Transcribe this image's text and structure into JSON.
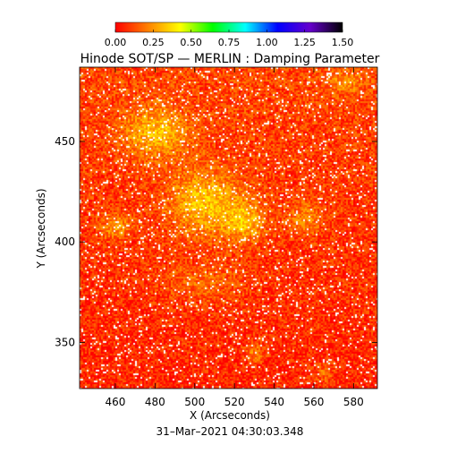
{
  "chart_data": {
    "type": "heatmap",
    "title": "Hinode SOT/SP — MERLIN : Damping Parameter",
    "xlabel": "X (Arcseconds)",
    "ylabel": "Y (Arcseconds)",
    "timestamp": "31–Mar–2021 04:30:03.348",
    "xlim": [
      442,
      592
    ],
    "ylim": [
      327,
      487
    ],
    "xticks": [
      460,
      480,
      500,
      520,
      540,
      560,
      580
    ],
    "yticks": [
      350,
      400,
      450
    ],
    "colorbar": {
      "range": [
        0.0,
        1.5
      ],
      "ticks": [
        "0.00",
        "0.25",
        "0.50",
        "0.75",
        "1.00",
        "1.25",
        "1.50"
      ],
      "colors": [
        "#ff0000",
        "#ff8000",
        "#ffff00",
        "#00ff00",
        "#00ffff",
        "#0000ff",
        "#6600cc",
        "#000000"
      ]
    },
    "background_value": 0.08,
    "regions": [
      {
        "x": 505,
        "y": 420,
        "rx": 18,
        "ry": 16,
        "value": 0.32
      },
      {
        "x": 480,
        "y": 455,
        "rx": 16,
        "ry": 12,
        "value": 0.3
      },
      {
        "x": 525,
        "y": 410,
        "rx": 10,
        "ry": 10,
        "value": 0.28
      },
      {
        "x": 460,
        "y": 408,
        "rx": 8,
        "ry": 6,
        "value": 0.25
      },
      {
        "x": 575,
        "y": 480,
        "rx": 10,
        "ry": 6,
        "value": 0.2
      },
      {
        "x": 555,
        "y": 412,
        "rx": 8,
        "ry": 8,
        "value": 0.22
      },
      {
        "x": 530,
        "y": 345,
        "rx": 5,
        "ry": 5,
        "value": 0.22
      },
      {
        "x": 565,
        "y": 335,
        "rx": 5,
        "ry": 5,
        "value": 0.2
      },
      {
        "x": 505,
        "y": 380,
        "rx": 20,
        "ry": 10,
        "value": 0.18
      }
    ]
  }
}
